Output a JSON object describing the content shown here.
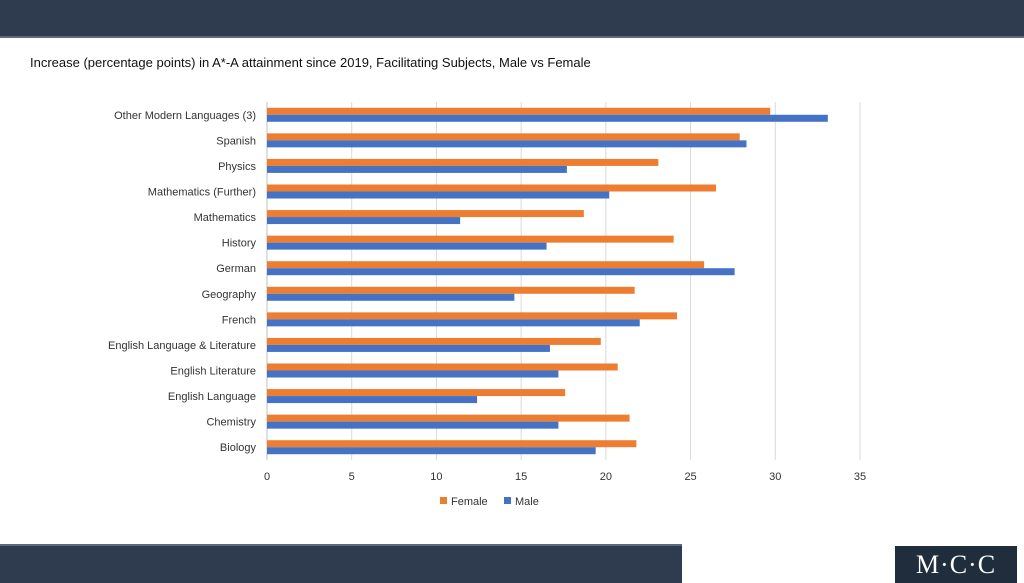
{
  "chart_data": {
    "type": "bar",
    "orientation": "horizontal",
    "title": "Increase (percentage points) in A*-A attainment since 2019, Facilitating Subjects, Male vs Female",
    "categories": [
      "Other Modern Languages (3)",
      "Spanish",
      "Physics",
      "Mathematics (Further)",
      "Mathematics",
      "History",
      "German",
      "Geography",
      "French",
      "English Language & Literature",
      "English Literature",
      "English Language",
      "Chemistry",
      "Biology"
    ],
    "series": [
      {
        "name": "Female",
        "color": "#ed7d31",
        "values": [
          29.7,
          27.9,
          23.1,
          26.5,
          18.7,
          24.0,
          25.8,
          21.7,
          24.2,
          19.7,
          20.7,
          17.6,
          21.4,
          21.8
        ]
      },
      {
        "name": "Male",
        "color": "#4472c4",
        "values": [
          33.1,
          28.3,
          17.7,
          20.2,
          11.4,
          16.5,
          27.6,
          14.6,
          22.0,
          16.7,
          17.2,
          12.4,
          17.2,
          19.4
        ]
      }
    ],
    "xlim": [
      0,
      35
    ],
    "xticks": [
      "0",
      "5",
      "10",
      "15",
      "20",
      "25",
      "30",
      "35"
    ],
    "grid": true,
    "legend_position": "bottom"
  },
  "logo": "M·C·C"
}
